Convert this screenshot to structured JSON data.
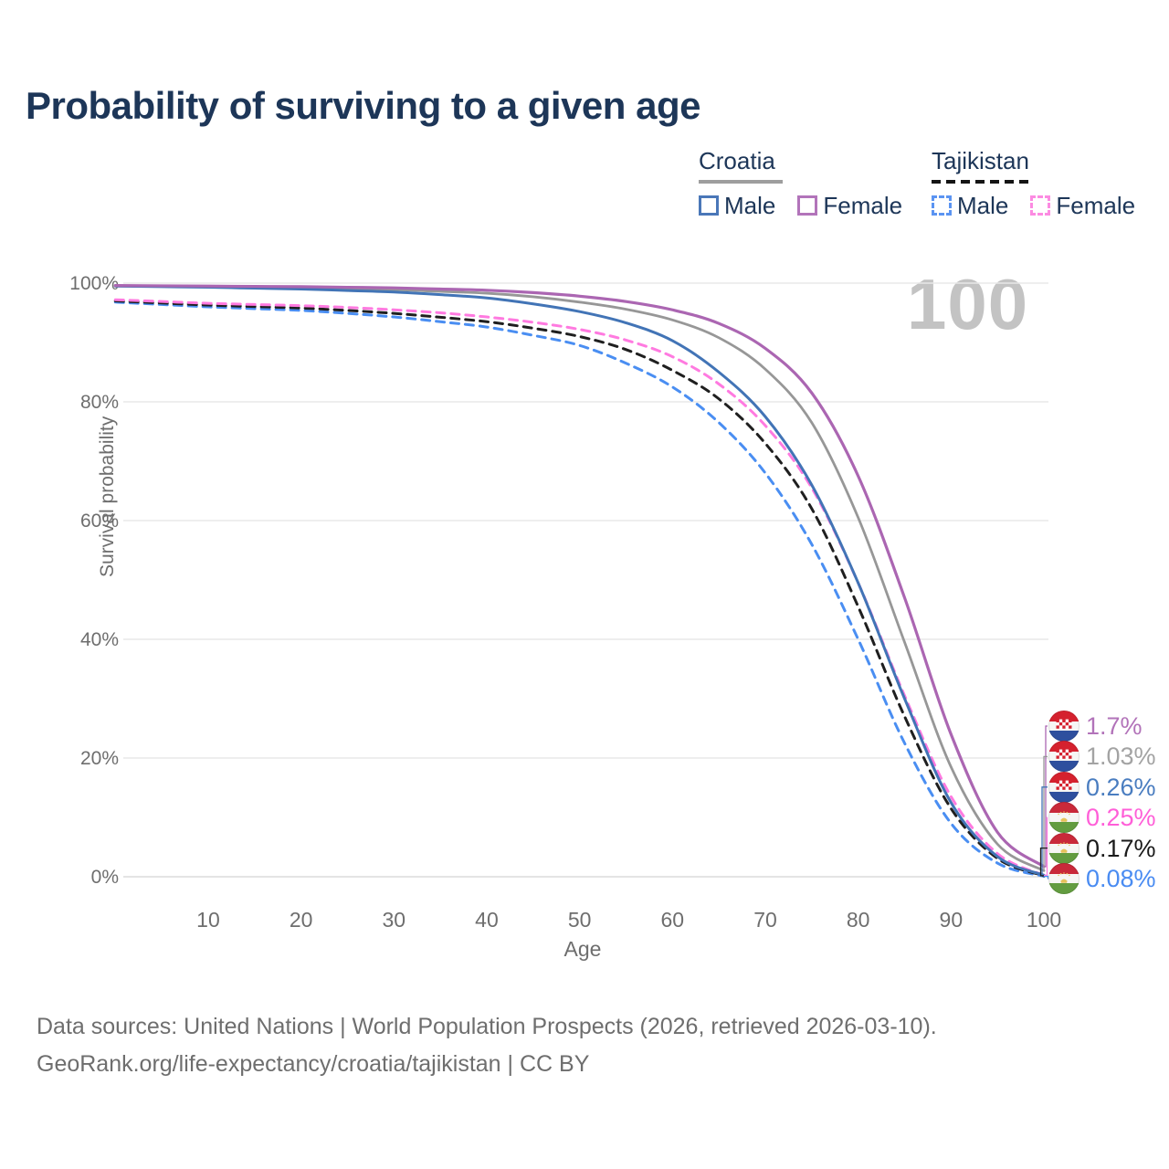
{
  "title": "Probability of surviving to a given age",
  "watermark": {
    "text": "100"
  },
  "legend": {
    "groups": [
      {
        "name": "Croatia",
        "line_style": "solid",
        "underline_color": "#9e9e9e",
        "items": [
          {
            "label": "Male",
            "color": "#4a77b8"
          },
          {
            "label": "Female",
            "color": "#b274ba"
          }
        ]
      },
      {
        "name": "Tajikistan",
        "line_style": "dashed",
        "underline_color": "#141414",
        "items": [
          {
            "label": "Male",
            "color": "#5b94f2"
          },
          {
            "label": "Female",
            "color": "#fc8be2"
          }
        ]
      }
    ]
  },
  "chart_data": {
    "type": "line",
    "title": "Probability of surviving to a given age",
    "xlabel": "Age",
    "ylabel": "Survival probability",
    "xlim": [
      0,
      100
    ],
    "ylim": [
      0,
      100
    ],
    "x_ticks": [
      10,
      20,
      30,
      40,
      50,
      60,
      70,
      80,
      90,
      100
    ],
    "y_ticks": [
      "0%",
      "20%",
      "40%",
      "60%",
      "80%",
      "100%"
    ],
    "grid": true,
    "legend_position": "top-right",
    "hover_age_indicator": "100",
    "x": [
      0,
      5,
      10,
      15,
      20,
      25,
      30,
      35,
      40,
      45,
      50,
      55,
      60,
      65,
      70,
      75,
      80,
      85,
      90,
      95,
      100
    ],
    "series": [
      {
        "name": "Croatia Female",
        "color": "#ab66b2",
        "dash": false,
        "width": 3.2,
        "end_label": "1.7%",
        "end_label_color": "#b273b9",
        "flag": "croatia",
        "values": [
          99.6,
          99.55,
          99.5,
          99.45,
          99.4,
          99.3,
          99.2,
          99.0,
          98.8,
          98.4,
          97.8,
          96.9,
          95.5,
          93.2,
          89.0,
          81.5,
          67.5,
          47.0,
          24.0,
          7.5,
          1.7
        ]
      },
      {
        "name": "Croatia",
        "color": "#979797",
        "dash": false,
        "width": 2.8,
        "end_label": "1.03%",
        "end_label_color": "#a3a3a3",
        "flag": "croatia",
        "values": [
          99.5,
          99.45,
          99.4,
          99.3,
          99.2,
          99.05,
          98.9,
          98.6,
          98.3,
          97.7,
          96.8,
          95.6,
          93.8,
          90.8,
          85.5,
          76.5,
          60.5,
          39.5,
          18.5,
          5.5,
          1.03
        ]
      },
      {
        "name": "Croatia Male",
        "color": "#4274b6",
        "dash": false,
        "width": 3,
        "end_label": "0.26%",
        "end_label_color": "#4a7dc0",
        "flag": "croatia",
        "values": [
          99.5,
          99.4,
          99.3,
          99.15,
          99.0,
          98.75,
          98.5,
          98.05,
          97.5,
          96.5,
          95.2,
          93.3,
          90.3,
          85.0,
          77.5,
          66.0,
          49.5,
          30.0,
          12.5,
          3.4,
          0.26
        ]
      },
      {
        "name": "Tajikistan Female",
        "color": "#ff7ae0",
        "dash": true,
        "width": 3,
        "end_label": "0.25%",
        "end_label_color": "#ff5fd8",
        "flag": "tajikistan",
        "values": [
          97.2,
          96.9,
          96.6,
          96.4,
          96.2,
          95.9,
          95.5,
          95.0,
          94.3,
          93.4,
          92.2,
          90.4,
          87.6,
          83.0,
          76.0,
          65.5,
          49.5,
          30.5,
          13.5,
          3.9,
          0.25
        ]
      },
      {
        "name": "Tajikistan",
        "color": "#1f1f1f",
        "dash": true,
        "width": 3,
        "end_label": "0.17%",
        "end_label_color": "#1a1a1a",
        "flag": "tajikistan",
        "values": [
          97.0,
          96.65,
          96.3,
          96.05,
          95.8,
          95.4,
          94.9,
          94.25,
          93.5,
          92.4,
          91.0,
          88.8,
          85.3,
          80.5,
          73.0,
          62.0,
          45.5,
          27.0,
          11.5,
          3.1,
          0.17
        ]
      },
      {
        "name": "Tajikistan Male",
        "color": "#4a8ef2",
        "dash": true,
        "width": 3,
        "end_label": "0.08%",
        "end_label_color": "#4a8cf2",
        "flag": "tajikistan",
        "values": [
          96.8,
          96.4,
          96.0,
          95.7,
          95.4,
          94.9,
          94.3,
          93.5,
          92.6,
          91.2,
          89.5,
          86.5,
          82.5,
          76.5,
          68.0,
          56.0,
          40.0,
          22.5,
          9.0,
          2.3,
          0.08
        ]
      }
    ]
  },
  "footer": {
    "line1": "Data sources: United Nations | World Population Prospects (2026, retrieved 2026-03-10).",
    "line2": "GeoRank.org/life-expectancy/croatia/tajikistan | CC BY"
  }
}
